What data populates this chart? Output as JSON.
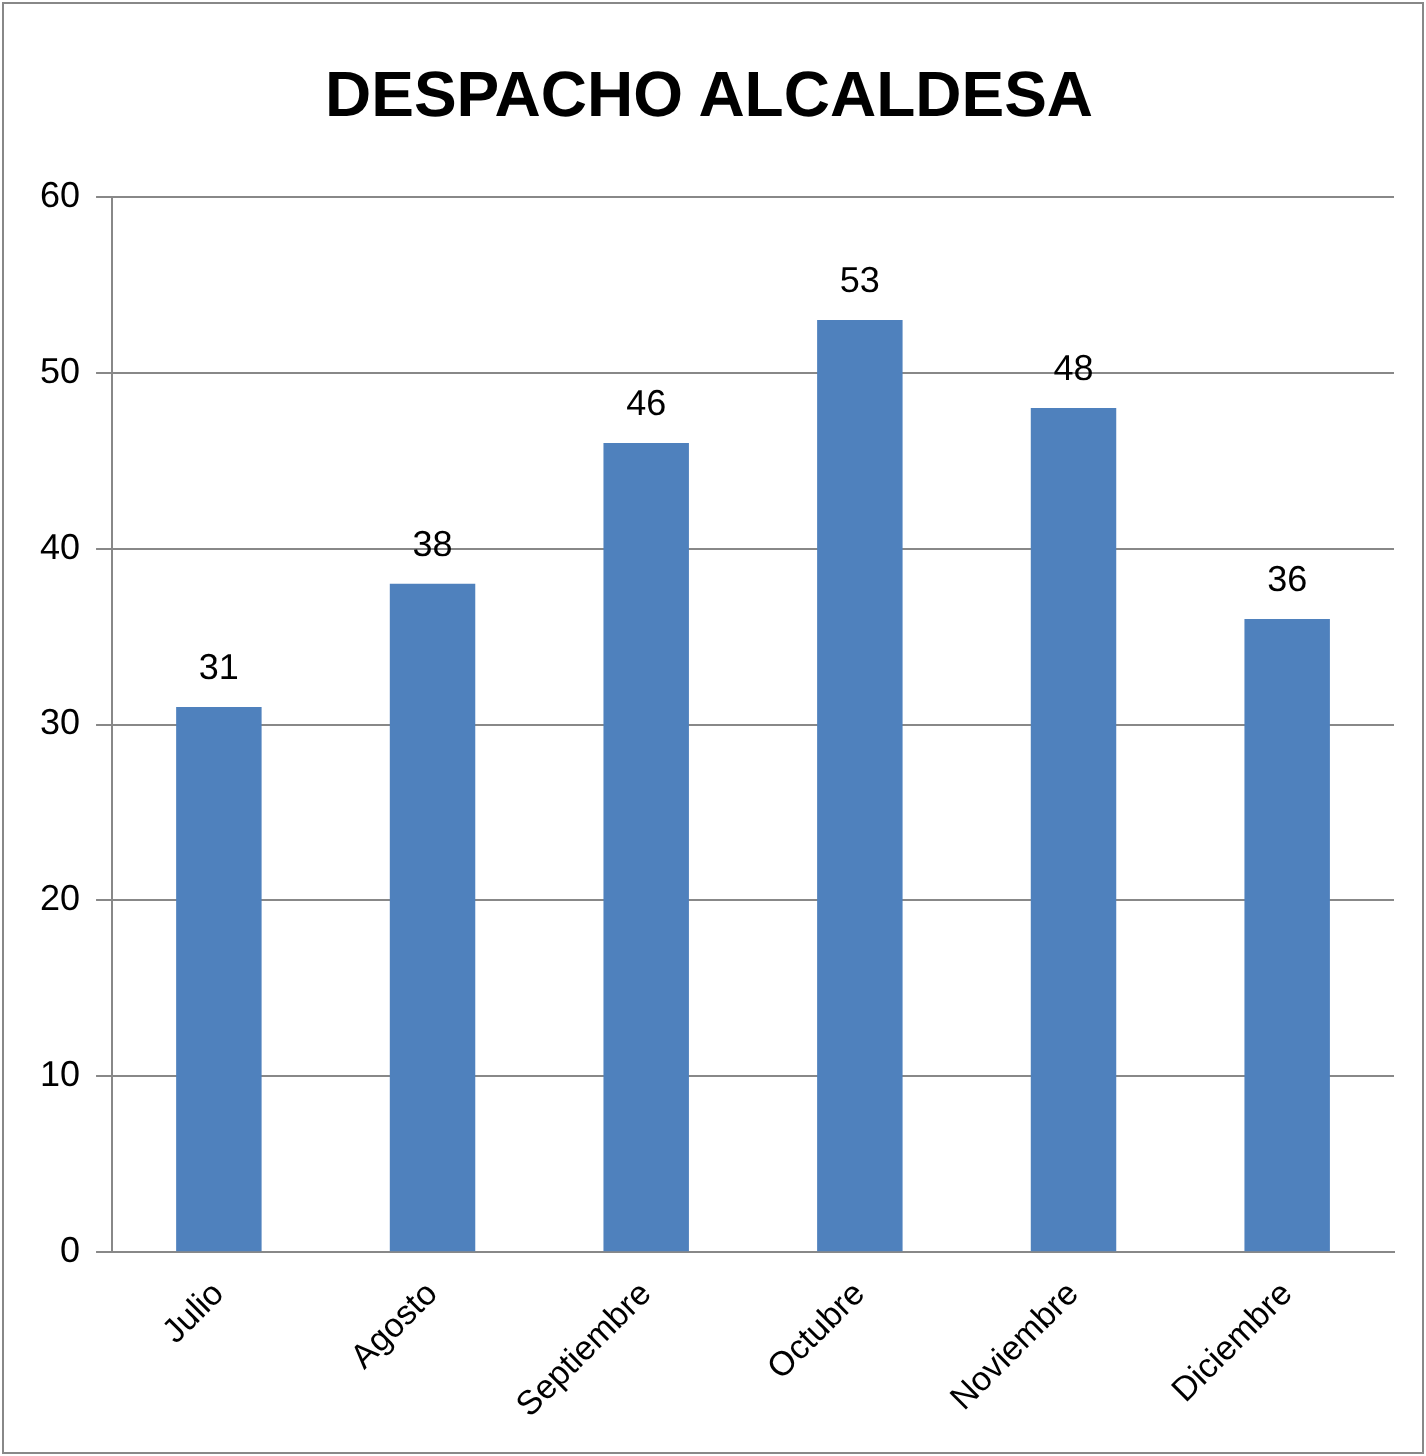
{
  "chart_data": {
    "type": "bar",
    "title": "DESPACHO ALCALDESA",
    "categories": [
      "Julio",
      "Agosto",
      "Septiembre",
      "Octubre",
      "Noviembre",
      "Diciembre"
    ],
    "values": [
      31,
      38,
      46,
      53,
      48,
      36
    ],
    "color": "#4f81bd",
    "ylim": [
      0,
      60
    ],
    "yticks": [
      0,
      10,
      20,
      30,
      40,
      50,
      60
    ],
    "grid": "y",
    "data_labels": true
  }
}
